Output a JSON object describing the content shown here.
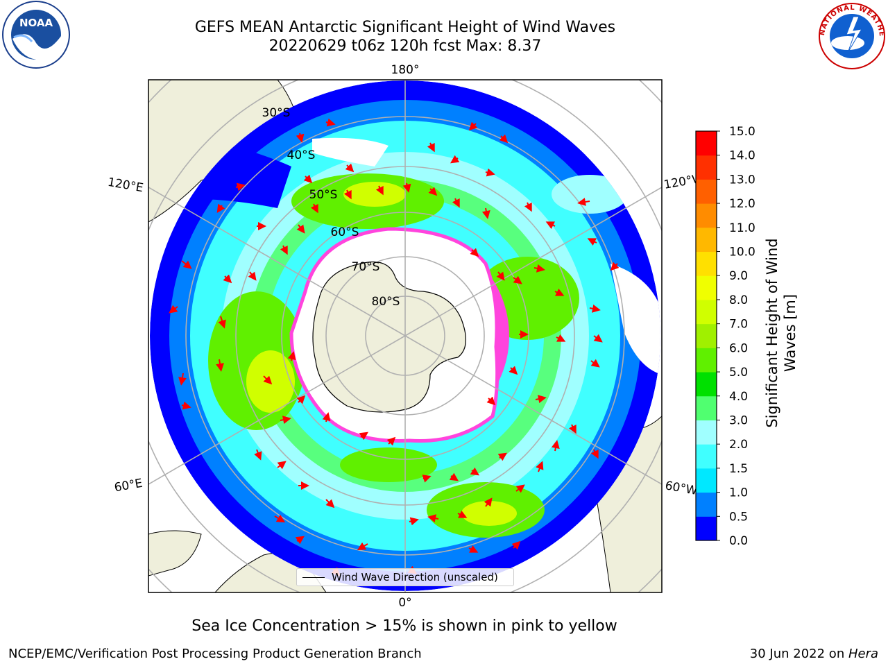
{
  "header": {
    "title_line1": "GEFS MEAN Antarctic Significant Height of Wind Waves",
    "title_line2": "20220629 t06z 120h fcst   Max: 8.37"
  },
  "map": {
    "longitude_labels": {
      "top": "180°",
      "bottom": "0°",
      "left_upper": "120°E",
      "left_lower": "60°E",
      "right_upper": "120°W",
      "right_lower": "60°W"
    },
    "latitude_labels": [
      "30°S",
      "40°S",
      "50°S",
      "60°S",
      "70°S",
      "80°S"
    ],
    "legend_label": "Wind Wave Direction (unscaled)",
    "colors": {
      "land": "#efefdb",
      "ice_edge": "#ff44dd",
      "arrow": "#ff0000"
    }
  },
  "colorbar": {
    "title": "Significant Height of Wind Waves [m]",
    "title_line1": "Significant Height of Wind",
    "title_line2": "Waves [m]",
    "ticks": [
      "0.0",
      "0.5",
      "1.0",
      "1.5",
      "2.0",
      "3.0",
      "4.0",
      "5.0",
      "6.0",
      "7.0",
      "8.0",
      "9.0",
      "10.0",
      "11.0",
      "12.0",
      "13.0",
      "14.0",
      "15.0"
    ],
    "colors": [
      "#0000ff",
      "#0080ff",
      "#00e8ff",
      "#40ffff",
      "#a0ffff",
      "#50ff70",
      "#00e000",
      "#60f000",
      "#a0f000",
      "#d0ff00",
      "#f0ff00",
      "#ffe000",
      "#ffb800",
      "#ff8c00",
      "#ff6000",
      "#ff3000",
      "#ff0000"
    ]
  },
  "footer": {
    "note": "Sea Ice Concentration > 15% is shown in pink to yellow",
    "credit": "NCEP/EMC/Verification Post Processing Product Generation Branch",
    "date_prefix": "30 Jun 2022 on ",
    "date_host": "Hera"
  },
  "logos": {
    "left": "NOAA",
    "right": "NATIONAL WEATHER SERVICE"
  }
}
